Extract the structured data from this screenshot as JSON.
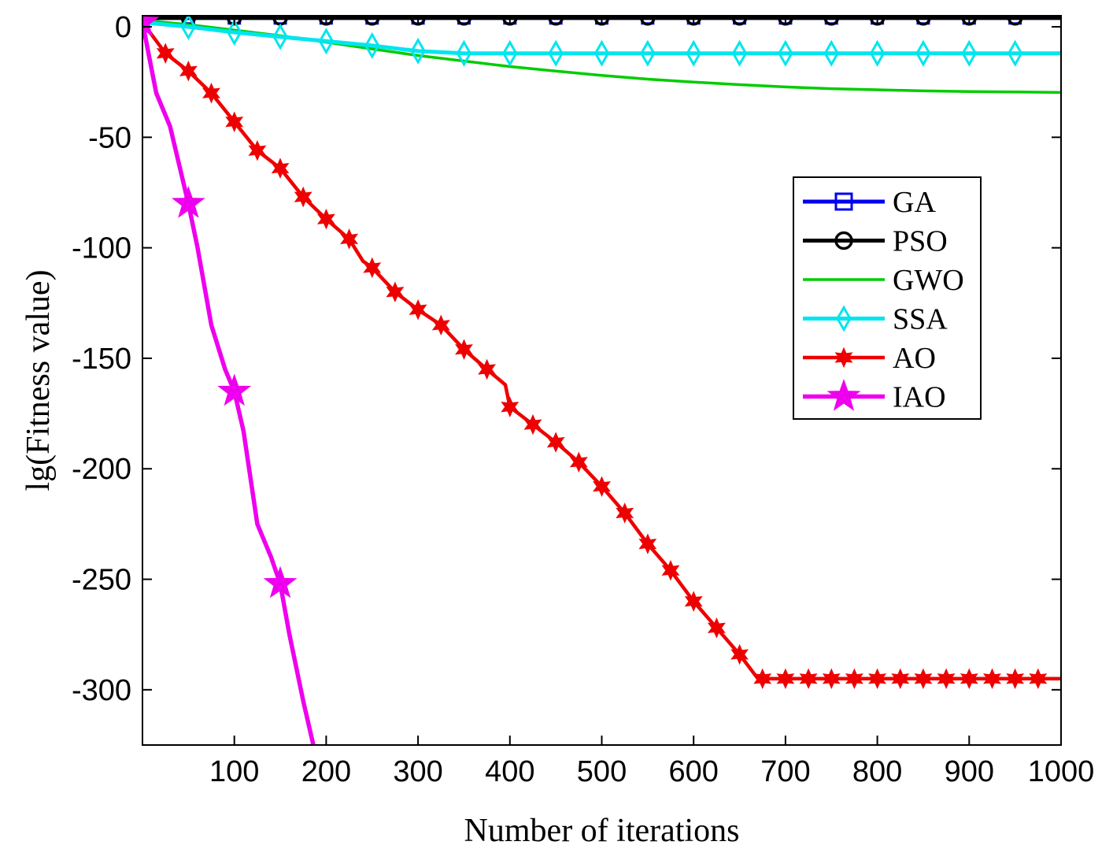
{
  "chart_data": {
    "type": "line",
    "title": "",
    "xlabel": "Number of iterations",
    "ylabel": "lg(Fitness value)",
    "xlim": [
      0,
      1000
    ],
    "ylim": [
      -325,
      5
    ],
    "xticks": [
      100,
      200,
      300,
      400,
      500,
      600,
      700,
      800,
      900,
      1000
    ],
    "xtick_labels": [
      "100",
      "200",
      "300",
      "400",
      "500",
      "600",
      "700",
      "800",
      "900",
      "1000"
    ],
    "yticks": [
      0,
      -50,
      -100,
      -150,
      -200,
      -250,
      -300
    ],
    "ytick_labels": [
      "0",
      "-50",
      "-100",
      "-150",
      "-200",
      "-250",
      "-300"
    ],
    "grid": false,
    "legend_position": "right",
    "series": [
      {
        "name": "GA",
        "color": "#0000ee",
        "marker": "square",
        "x": [
          0,
          1000
        ],
        "y": [
          4,
          4
        ],
        "marker_x": [
          0,
          50,
          100,
          150,
          200,
          250,
          300,
          350,
          400,
          450,
          500,
          550,
          600,
          650,
          700,
          750,
          800,
          850,
          900,
          950
        ]
      },
      {
        "name": "PSO",
        "color": "#000000",
        "marker": "circle",
        "x": [
          0,
          1000
        ],
        "y": [
          4,
          4
        ],
        "marker_x": [
          0,
          50,
          100,
          150,
          200,
          250,
          300,
          350,
          400,
          450,
          500,
          550,
          600,
          650,
          700,
          750,
          800,
          850,
          900,
          950
        ]
      },
      {
        "name": "GWO",
        "color": "#00cc00",
        "marker": "none",
        "x": [
          0,
          50,
          100,
          150,
          200,
          250,
          300,
          350,
          400,
          450,
          500,
          550,
          600,
          650,
          700,
          750,
          800,
          850,
          900,
          950,
          1000
        ],
        "y": [
          3,
          1,
          -1.5,
          -4,
          -7,
          -10,
          -13,
          -15.5,
          -18,
          -20,
          -22,
          -23.7,
          -25,
          -26.2,
          -27.2,
          -28,
          -28.5,
          -29,
          -29.3,
          -29.5,
          -29.7
        ],
        "marker_x": []
      },
      {
        "name": "SSA",
        "color": "#00e5ee",
        "marker": "diamond",
        "x": [
          0,
          50,
          100,
          150,
          200,
          250,
          300,
          350,
          1000
        ],
        "y": [
          2,
          0,
          -2.5,
          -4.5,
          -6.5,
          -8.5,
          -11,
          -12,
          -12
        ],
        "marker_x": [
          50,
          100,
          150,
          200,
          250,
          300,
          350,
          400,
          450,
          500,
          550,
          600,
          650,
          700,
          750,
          800,
          850,
          900,
          950
        ]
      },
      {
        "name": "AO",
        "color": "#ee0000",
        "marker": "hexagram",
        "x": [
          0,
          25,
          50,
          75,
          100,
          125,
          150,
          175,
          200,
          225,
          240,
          250,
          275,
          300,
          325,
          350,
          375,
          395,
          400,
          425,
          450,
          475,
          500,
          525,
          550,
          575,
          600,
          625,
          650,
          670,
          1000
        ],
        "y": [
          2,
          -12,
          -20,
          -30,
          -43,
          -56,
          -64,
          -77,
          -87,
          -96,
          -106,
          -109,
          -120,
          -128,
          -135,
          -146,
          -155,
          -162,
          -172,
          -180,
          -188,
          -197,
          -208,
          -220,
          -234,
          -246,
          -260,
          -272,
          -284,
          -295,
          -295
        ],
        "marker_x": [
          0,
          25,
          50,
          75,
          100,
          125,
          150,
          175,
          200,
          225,
          250,
          275,
          300,
          325,
          350,
          375,
          400,
          425,
          450,
          475,
          500,
          525,
          550,
          575,
          600,
          625,
          650,
          675,
          700,
          725,
          750,
          775,
          800,
          825,
          850,
          875,
          900,
          925,
          950,
          975
        ]
      },
      {
        "name": "IAO",
        "color": "#ee00ee",
        "marker": "pentagram",
        "x": [
          0,
          15,
          30,
          50,
          60,
          75,
          90,
          100,
          110,
          125,
          140,
          150,
          160,
          175,
          186
        ],
        "y": [
          2,
          -30,
          -45,
          -80,
          -100,
          -135,
          -155,
          -165,
          -183,
          -225,
          -240,
          -252,
          -275,
          -305,
          -325
        ],
        "marker_x": [
          0,
          50,
          100,
          150
        ]
      }
    ]
  }
}
